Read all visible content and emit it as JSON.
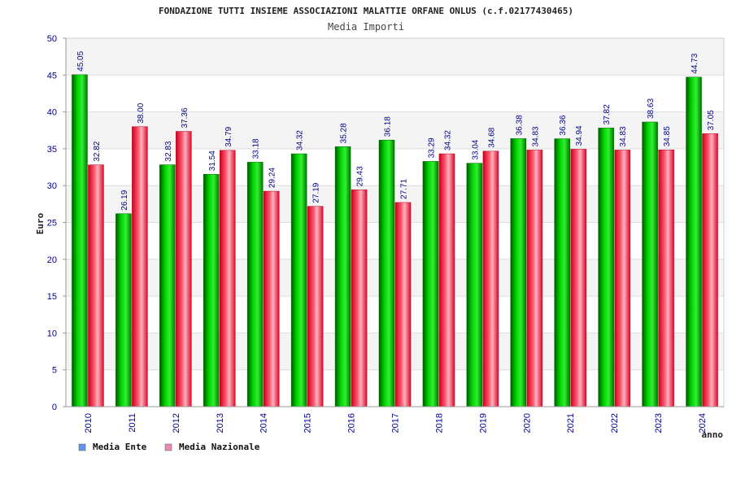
{
  "chart_data": {
    "type": "bar",
    "title": "FONDAZIONE TUTTI INSIEME ASSOCIAZIONI MALATTIE ORFANE ONLUS (c.f.02177430465)",
    "subtitle": "Media Importi",
    "xlabel": "anno",
    "ylabel": "Euro",
    "ylim": [
      0,
      50
    ],
    "yticks": [
      0,
      5,
      10,
      15,
      20,
      25,
      30,
      35,
      40,
      45,
      50
    ],
    "grid": true,
    "legend_position": "bottom-left",
    "categories": [
      "2010",
      "2011",
      "2012",
      "2013",
      "2014",
      "2015",
      "2016",
      "2017",
      "2018",
      "2019",
      "2020",
      "2021",
      "2022",
      "2023",
      "2024"
    ],
    "series": [
      {
        "name": "Media Ente",
        "color": "#00c800",
        "legend_color": "#6495ed",
        "values": [
          45.05,
          26.19,
          32.83,
          31.54,
          33.18,
          34.32,
          35.28,
          36.18,
          33.29,
          33.04,
          36.38,
          36.36,
          37.82,
          38.63,
          44.73
        ],
        "labels": [
          "45.05",
          "26.19",
          "32.83",
          "31.54",
          "33.18",
          "34.32",
          "35.28",
          "36.18",
          "33.29",
          "33.04",
          "36.38",
          "36.36",
          "37.82",
          "38.63",
          "44.73"
        ]
      },
      {
        "name": "Media Nazionale",
        "color": "#e8141e",
        "legend_color": "#e68cb4",
        "values": [
          32.82,
          38.0,
          37.36,
          34.79,
          29.24,
          27.19,
          29.43,
          27.71,
          34.32,
          34.68,
          34.83,
          34.94,
          34.83,
          34.85,
          37.05
        ],
        "labels": [
          "32.82",
          "38.00",
          "37.36",
          "34.79",
          "29.24",
          "27.19",
          "29.43",
          "27.71",
          "34.32",
          "34.68",
          "34.83",
          "34.94",
          "34.83",
          "34.85",
          "37.05"
        ]
      }
    ]
  }
}
